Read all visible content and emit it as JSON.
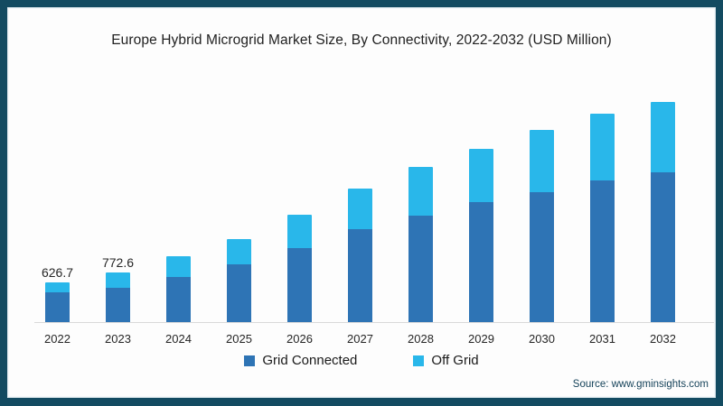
{
  "page": {
    "title": "Europe Hybrid Microgrid Market Size, By Connectivity, 2022-2032 (USD Million)",
    "source": "Source: www.gminsights.com"
  },
  "chart_data": {
    "type": "bar",
    "stacked": true,
    "title": "Europe Hybrid Microgrid Market Size, By Connectivity, 2022-2032 (USD Million)",
    "xlabel": "",
    "ylabel": "",
    "unit": "USD Million",
    "categories": [
      "2022",
      "2023",
      "2024",
      "2025",
      "2026",
      "2027",
      "2028",
      "2029",
      "2030",
      "2031",
      "2032"
    ],
    "series": [
      {
        "name": "Grid Connected",
        "color": "#2e74b5",
        "values": [
          465,
          530,
          710,
          900,
          1160,
          1445,
          1655,
          1870,
          2035,
          2205,
          2335
        ]
      },
      {
        "name": "Off Grid",
        "color": "#29b7ea",
        "values": [
          161.7,
          242.6,
          320,
          400,
          510,
          645,
          765,
          830,
          965,
          1045,
          1095
        ]
      }
    ],
    "totals_estimated": [
      626.7,
      772.6,
      1030,
      1300,
      1670,
      2090,
      2420,
      2700,
      3000,
      3250,
      3430
    ],
    "total_labels": {
      "2022": "626.7",
      "2023": "772.6"
    },
    "ylim": [
      0,
      3600
    ],
    "grid": false,
    "legend_position": "bottom",
    "axis_line_color": "#d9d9d9",
    "frame_color": "#134b61",
    "source": "Source: www.gminsights.com"
  }
}
